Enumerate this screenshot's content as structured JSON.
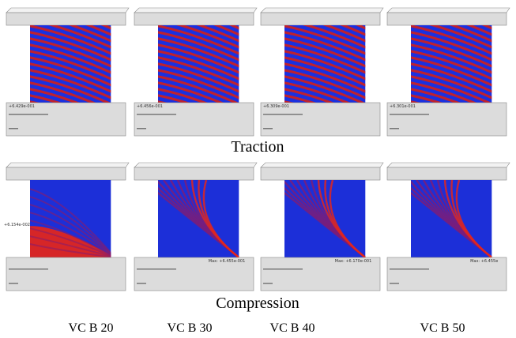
{
  "rows": [
    {
      "title": "Traction",
      "panels": [
        {
          "legend": "+6.429e-001"
        },
        {
          "legend": "+6.456e-001"
        },
        {
          "legend": "+6.309e-001"
        },
        {
          "legend": "+6.301e-001"
        }
      ]
    },
    {
      "title": "Compression",
      "panels": [
        {
          "legend": "+6.154e-002"
        },
        {
          "legend": "Max: +6.455e-001"
        },
        {
          "legend": "Max: +6.170e-001"
        },
        {
          "legend": "Max: +6.455e"
        }
      ]
    }
  ],
  "columns": [
    "VC B 20",
    "VC B 30",
    "VC B 40",
    "VC B 50"
  ]
}
